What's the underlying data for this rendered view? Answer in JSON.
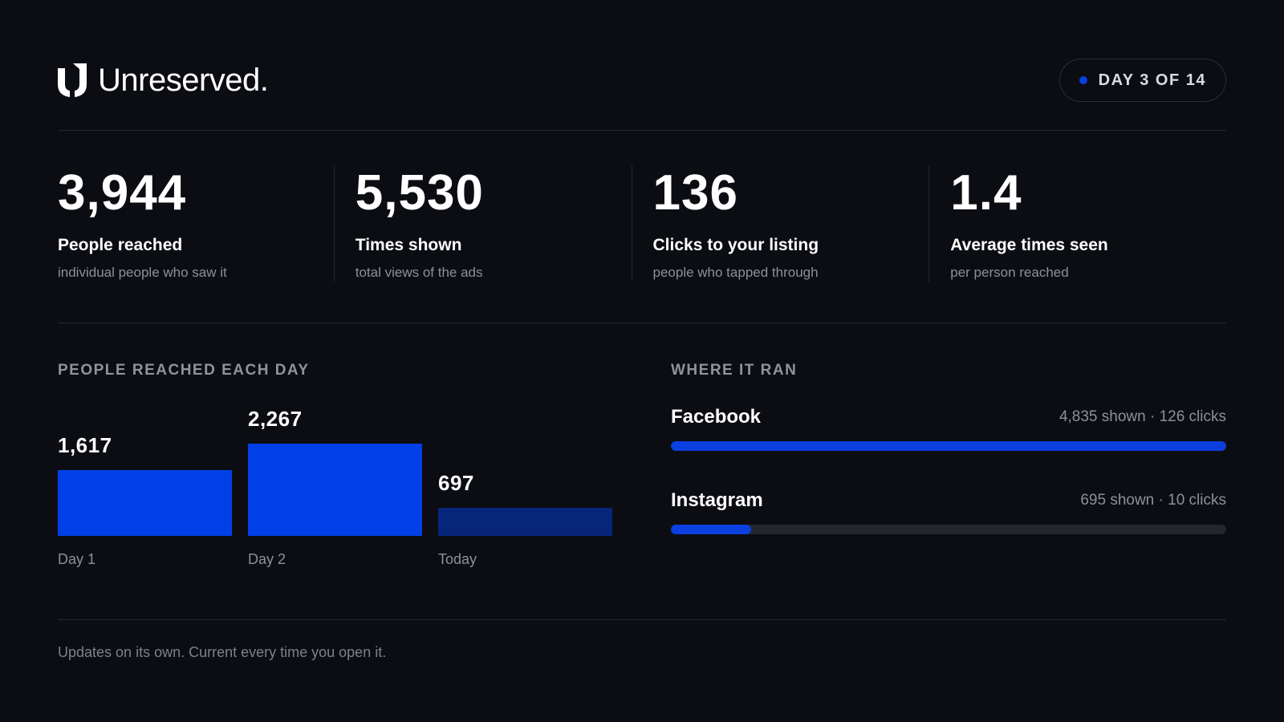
{
  "brand": {
    "name": "Unreserved.",
    "icon": "brand-u-icon"
  },
  "badge": {
    "text": "DAY 3 OF 14",
    "dot_color": "#0b3fe0"
  },
  "stats": [
    {
      "value": "3,944",
      "label": "People reached",
      "sub": "individual people who saw it"
    },
    {
      "value": "5,530",
      "label": "Times shown",
      "sub": "total views of the ads"
    },
    {
      "value": "136",
      "label": "Clicks to your listing",
      "sub": "people who tapped through"
    },
    {
      "value": "1.4",
      "label": "Average times seen",
      "sub": "per person reached"
    }
  ],
  "daily": {
    "title": "PEOPLE REACHED EACH DAY"
  },
  "chart_data": {
    "type": "bar",
    "categories": [
      "Day 1",
      "Day 2",
      "Today"
    ],
    "values": [
      1617,
      2267,
      697
    ],
    "value_labels": [
      "1,617",
      "2,267",
      "697"
    ],
    "bar_colors": [
      "#0040e6",
      "#0040e6",
      "#07257a"
    ],
    "title": "PEOPLE REACHED EACH DAY"
  },
  "platforms": {
    "title": "WHERE IT RAN",
    "items": [
      {
        "name": "Facebook",
        "meta": "4,835 shown · 126 clicks",
        "shown": 4835
      },
      {
        "name": "Instagram",
        "meta": "695 shown · 10 clicks",
        "shown": 695
      }
    ],
    "fill_color": "#0b3fe0"
  },
  "footer": {
    "text": "Updates on its own. Current every time you open it."
  }
}
